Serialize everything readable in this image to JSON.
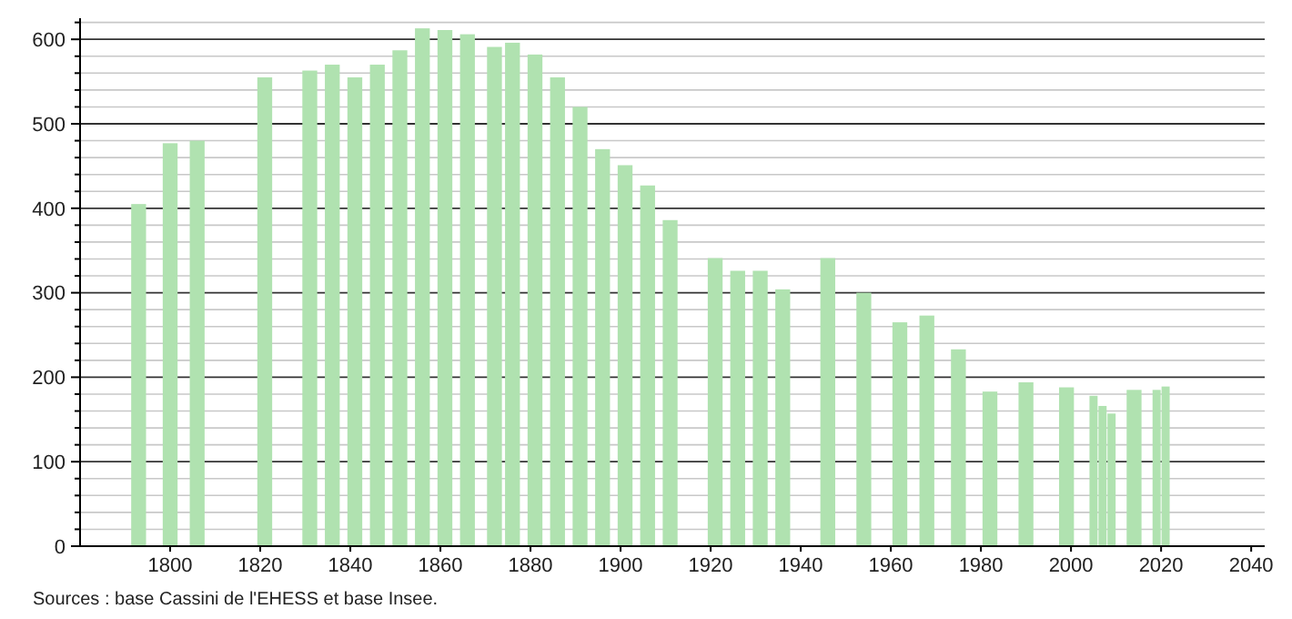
{
  "chart_data": {
    "type": "bar",
    "x": [
      1793,
      1800,
      1806,
      1821,
      1831,
      1836,
      1841,
      1846,
      1851,
      1856,
      1861,
      1866,
      1872,
      1876,
      1881,
      1886,
      1891,
      1896,
      1901,
      1906,
      1911,
      1921,
      1926,
      1931,
      1936,
      1946,
      1954,
      1962,
      1968,
      1975,
      1982,
      1990,
      1999,
      2005,
      2007,
      2009,
      2014,
      2019,
      2021
    ],
    "values": [
      405,
      477,
      480,
      555,
      563,
      570,
      555,
      570,
      587,
      613,
      611,
      606,
      591,
      596,
      582,
      555,
      520,
      470,
      451,
      427,
      386,
      341,
      326,
      326,
      304,
      341,
      300,
      265,
      273,
      233,
      183,
      194,
      188,
      178,
      166,
      157,
      185,
      185,
      189
    ],
    "color": "#b0e2b0",
    "xlim": [
      1780,
      2043
    ],
    "xticks": [
      1800,
      1820,
      1840,
      1860,
      1880,
      1900,
      1920,
      1940,
      1960,
      1980,
      2000,
      2020,
      2040
    ],
    "ylim": [
      0,
      625
    ],
    "yticks": [
      0,
      {
        "value": 20,
        "label": null
      },
      {
        "value": 40,
        "label": null
      },
      {
        "value": 60,
        "label": null
      },
      {
        "value": 80,
        "label": null
      },
      100,
      {
        "value": 120,
        "label": null
      },
      {
        "value": 140,
        "label": null
      },
      {
        "value": 160,
        "label": null
      },
      {
        "value": 180,
        "label": null
      },
      200,
      {
        "value": 220,
        "label": null
      },
      {
        "value": 240,
        "label": null
      },
      {
        "value": 260,
        "label": null
      },
      {
        "value": 280,
        "label": null
      },
      300,
      {
        "value": 320,
        "label": null
      },
      {
        "value": 340,
        "label": null
      },
      {
        "value": 360,
        "label": null
      },
      {
        "value": 380,
        "label": null
      },
      400,
      {
        "value": 420,
        "label": null
      },
      {
        "value": 440,
        "label": null
      },
      {
        "value": 460,
        "label": null
      },
      {
        "value": 480,
        "label": null
      },
      500,
      {
        "value": 520,
        "label": null
      },
      {
        "value": 540,
        "label": null
      },
      {
        "value": 560,
        "label": null
      },
      {
        "value": 580,
        "label": null
      },
      600,
      {
        "value": 620,
        "label": null
      }
    ],
    "grid": "y",
    "annotations": [
      "Sources : base Cassini de l'EHESS et base Insee."
    ]
  }
}
